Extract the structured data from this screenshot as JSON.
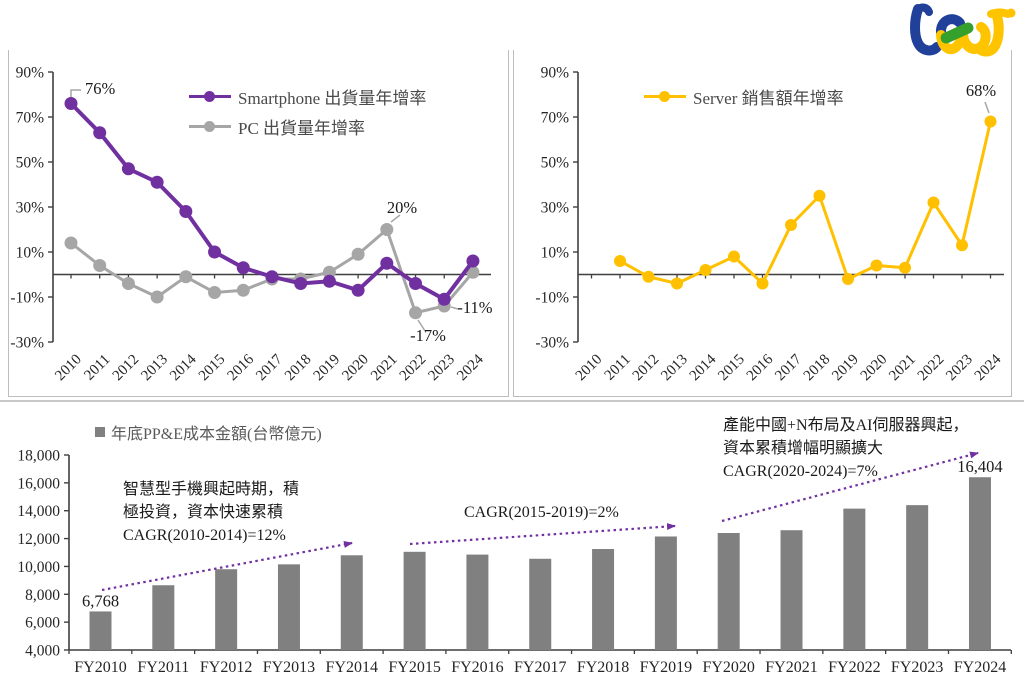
{
  "logo": {
    "alt": "tej"
  },
  "colors": {
    "purple": "#7030A0",
    "gray_line": "#A6A6A6",
    "gold": "#FFC000",
    "bar_gray": "#808080",
    "axis": "#3f3f3f",
    "annotation_text": "#1a1a1a"
  },
  "chart_data": [
    {
      "id": "smartphone_pc",
      "type": "line",
      "x": [
        "2010",
        "2011",
        "2012",
        "2013",
        "2014",
        "2015",
        "2016",
        "2017",
        "2018",
        "2019",
        "2020",
        "2021",
        "2022",
        "2023",
        "2024"
      ],
      "ylim": [
        -30,
        90
      ],
      "grid": false,
      "legend_position": "top-center-inside",
      "y_ticks": [
        {
          "value": 90,
          "label": "90%"
        },
        {
          "value": 70,
          "label": "70%"
        },
        {
          "value": 50,
          "label": "50%"
        },
        {
          "value": 30,
          "label": "30%"
        },
        {
          "value": 10,
          "label": "10%"
        },
        {
          "value": -10,
          "label": "-10%"
        },
        {
          "value": -30,
          "label": "-30%"
        }
      ],
      "series": [
        {
          "name": "Smartphone 出貨量年增率",
          "color": "#7030A0",
          "values": [
            76,
            63,
            47,
            41,
            28,
            10,
            3,
            -1,
            -4,
            -3,
            -7,
            5,
            -4,
            -11,
            6
          ]
        },
        {
          "name": "PC 出貨量年增率",
          "color": "#A6A6A6",
          "values": [
            14,
            4,
            -4,
            -10,
            -1,
            -8,
            -7,
            -2,
            -2,
            1,
            9,
            20,
            -17,
            -14,
            1
          ]
        }
      ],
      "annotations": [
        {
          "text": "76%",
          "series": 0,
          "year": "2010"
        },
        {
          "text": "20%",
          "series": 1,
          "year": "2021"
        },
        {
          "text": "-17%",
          "series": 1,
          "year": "2022"
        },
        {
          "text": "-11%",
          "series": 0,
          "year": "2023"
        }
      ]
    },
    {
      "id": "server",
      "type": "line",
      "x": [
        "2010",
        "2011",
        "2012",
        "2013",
        "2014",
        "2015",
        "2016",
        "2017",
        "2018",
        "2019",
        "2020",
        "2021",
        "2022",
        "2023",
        "2024"
      ],
      "ylim": [
        -30,
        90
      ],
      "grid": false,
      "legend_position": "top-center-inside",
      "y_ticks": [
        {
          "value": 90,
          "label": "90%"
        },
        {
          "value": 70,
          "label": "70%"
        },
        {
          "value": 50,
          "label": "50%"
        },
        {
          "value": 30,
          "label": "30%"
        },
        {
          "value": 10,
          "label": "10%"
        },
        {
          "value": -10,
          "label": "-10%"
        },
        {
          "value": -30,
          "label": "-30%"
        }
      ],
      "series": [
        {
          "name": "Server 銷售額年增率",
          "color": "#FFC000",
          "values": [
            null,
            6,
            -1,
            -4,
            2,
            8,
            -4,
            22,
            35,
            -2,
            4,
            3,
            32,
            13,
            68
          ]
        }
      ],
      "annotations": [
        {
          "text": "68%",
          "series": 0,
          "year": "2024"
        }
      ]
    },
    {
      "id": "ppe",
      "type": "bar",
      "legend": "年底PP&E成本金額(台幣億元)",
      "bar_color": "#808080",
      "categories": [
        "FY2010",
        "FY2011",
        "FY2012",
        "FY2013",
        "FY2014",
        "FY2015",
        "FY2016",
        "FY2017",
        "FY2018",
        "FY2019",
        "FY2020",
        "FY2021",
        "FY2022",
        "FY2023",
        "FY2024"
      ],
      "values": [
        6768,
        8650,
        9800,
        10150,
        10800,
        11050,
        10850,
        10550,
        11250,
        12150,
        12400,
        12600,
        14150,
        14400,
        16404
      ],
      "ylim": [
        4000,
        18000
      ],
      "grid": false,
      "y_ticks": [
        {
          "value": 18000,
          "label": "18,000"
        },
        {
          "value": 16000,
          "label": "16,000"
        },
        {
          "value": 14000,
          "label": "14,000"
        },
        {
          "value": 12000,
          "label": "12,000"
        },
        {
          "value": 10000,
          "label": "10,000"
        },
        {
          "value": 8000,
          "label": "8,000"
        },
        {
          "value": 6000,
          "label": "6,000"
        },
        {
          "value": 4000,
          "label": "4,000"
        }
      ],
      "bar_value_labels": [
        {
          "category": "FY2010",
          "text": "6,768"
        },
        {
          "category": "FY2024",
          "text": "16,404"
        }
      ],
      "text_annotations": [
        {
          "lines": [
            "智慧型手機興起時期，積",
            "極投資，資本快速累積",
            "CAGR(2010-2014)=12%"
          ]
        },
        {
          "lines": [
            "CAGR(2015-2019)=2%"
          ]
        },
        {
          "lines": [
            "產能中國+N布局及AI伺服器興起，",
            "資本累積增幅明顯擴大",
            "CAGR(2020-2024)=7%"
          ]
        }
      ],
      "arrow_color": "#7030A0"
    }
  ]
}
